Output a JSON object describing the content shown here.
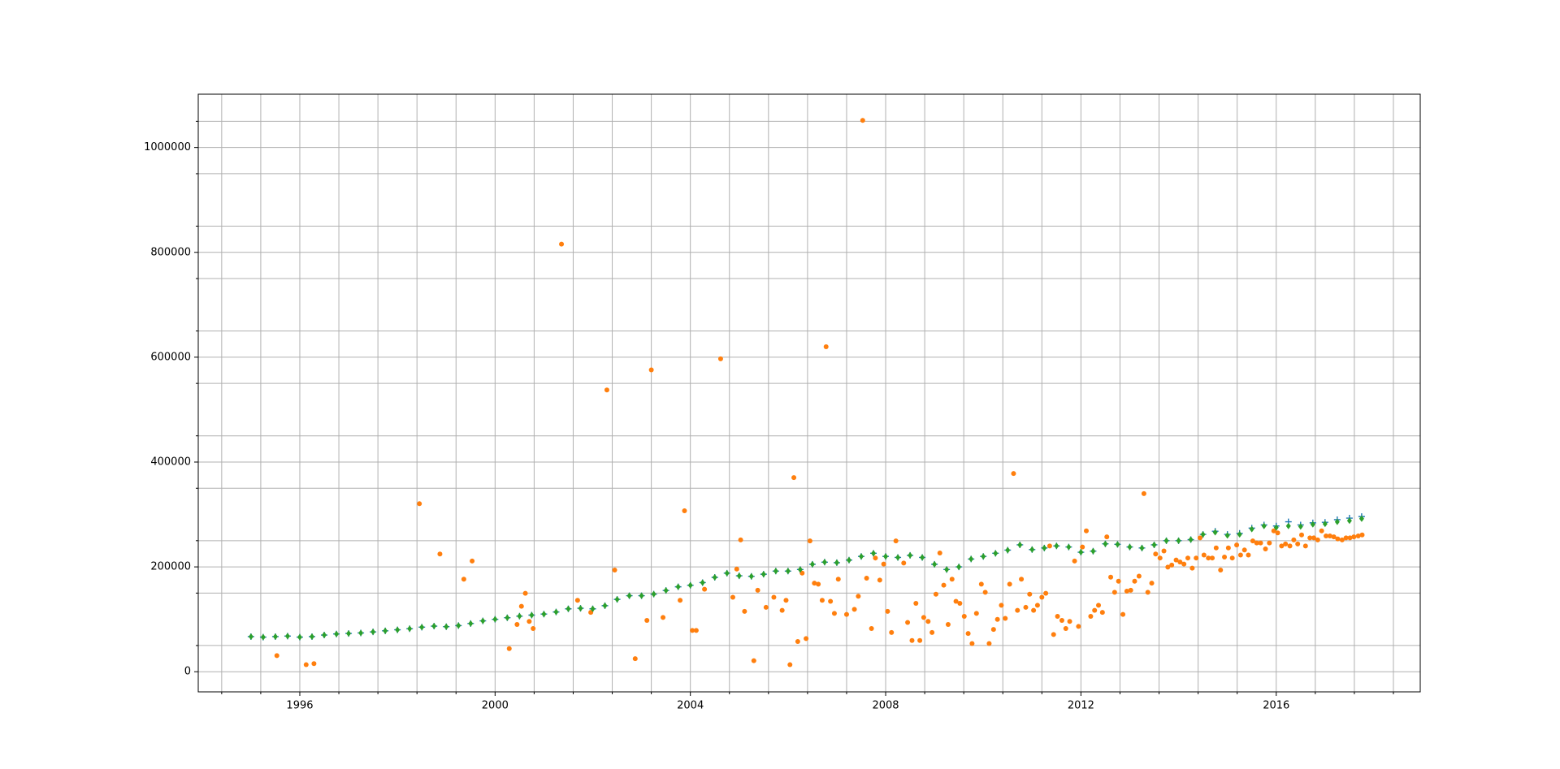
{
  "chart_data": {
    "type": "scatter",
    "xlim": [
      1993.92,
      2018.95
    ],
    "ylim": [
      -38400,
      1101700
    ],
    "xticks": [
      1996,
      2000,
      2004,
      2008,
      2012,
      2016
    ],
    "yticks": [
      0,
      200000,
      400000,
      600000,
      800000,
      1000000
    ],
    "xminorticks": [
      1994.4,
      1995.2,
      1996.8,
      1997.6,
      1998.4,
      1999.2,
      2000.8,
      2001.6,
      2002.4,
      2003.2,
      2004.8,
      2005.6,
      2006.4,
      2007.2,
      2008.8,
      2009.6,
      2010.4,
      2011.2,
      2012.8,
      2013.6,
      2014.4,
      2015.2,
      2016.8,
      2017.6,
      2018.4
    ],
    "yminorticks": [
      50000,
      150000,
      250000,
      350000,
      450000,
      550000,
      650000,
      750000,
      850000,
      950000,
      1050000
    ],
    "grid": true,
    "series": [
      {
        "color": "#1f77b4",
        "marker": "plus",
        "x": [
          1995,
          1995.25,
          1995.5,
          1995.75,
          1996,
          1996.25,
          1996.5,
          1996.75,
          1997,
          1997.25,
          1997.5,
          1997.75,
          1998,
          1998.25,
          1998.5,
          1998.75,
          1999,
          1999.25,
          1999.5,
          1999.75,
          2000,
          2000.25,
          2000.5,
          2000.75,
          2001,
          2001.25,
          2001.5,
          2001.75,
          2002,
          2002.25,
          2002.5,
          2002.75,
          2003,
          2003.25,
          2003.5,
          2003.75,
          2004,
          2004.25,
          2004.5,
          2004.75,
          2005,
          2005.25,
          2005.5,
          2005.75,
          2006,
          2006.25,
          2006.5,
          2006.75,
          2007,
          2007.25,
          2007.5,
          2007.75,
          2008,
          2008.25,
          2008.5,
          2008.75,
          2009,
          2009.25,
          2009.5,
          2009.75,
          2010,
          2010.25,
          2010.5,
          2010.75,
          2011,
          2011.25,
          2011.5,
          2011.75,
          2012,
          2012.25,
          2012.5,
          2012.75,
          2013,
          2013.25,
          2013.5,
          2013.75,
          2014,
          2014.25,
          2014.5,
          2014.75,
          2015,
          2015.25,
          2015.5,
          2015.75,
          2016,
          2016.25,
          2016.5,
          2016.75,
          2017,
          2017.25,
          2017.5,
          2017.75
        ],
        "values": [
          67000,
          66000,
          67000,
          68000,
          66000,
          67000,
          70000,
          72000,
          73000,
          74000,
          76000,
          78000,
          80000,
          82000,
          85000,
          87000,
          86000,
          88000,
          92000,
          97000,
          100000,
          103000,
          106000,
          108000,
          110000,
          114000,
          120000,
          121000,
          120000,
          126000,
          138000,
          145000,
          145000,
          148000,
          155000,
          162000,
          165000,
          170000,
          180000,
          188000,
          183000,
          182000,
          186000,
          192000,
          192000,
          195000,
          205000,
          209000,
          208000,
          213000,
          220000,
          226000,
          220000,
          218000,
          222000,
          218000,
          205000,
          195000,
          200000,
          215000,
          220000,
          226000,
          232000,
          242000,
          233000,
          236000,
          240000,
          238000,
          228000,
          230000,
          244000,
          243000,
          238000,
          236000,
          242000,
          250000,
          250000,
          252000,
          262000,
          268000,
          262000,
          264000,
          274000,
          280000,
          278000,
          286000,
          280000,
          284000,
          285000,
          290000,
          293000,
          296000
        ]
      },
      {
        "color": "#ff7f0e",
        "marker": "circle",
        "x": [
          1995.53,
          1996.13,
          1996.29,
          1998.45,
          1998.87,
          1999.36,
          1999.53,
          2000.29,
          2000.45,
          2000.54,
          2000.62,
          2000.7,
          2000.78,
          2001.36,
          2001.69,
          2001.96,
          2002.29,
          2002.45,
          2002.87,
          2003.11,
          2003.2,
          2003.44,
          2003.79,
          2003.88,
          2004.04,
          2004.12,
          2004.29,
          2004.62,
          2004.87,
          2004.95,
          2005.03,
          2005.11,
          2005.3,
          2005.38,
          2005.55,
          2005.71,
          2005.88,
          2005.96,
          2006.04,
          2006.12,
          2006.2,
          2006.29,
          2006.37,
          2006.45,
          2006.54,
          2006.62,
          2006.7,
          2006.78,
          2006.87,
          2006.95,
          2007.03,
          2007.2,
          2007.36,
          2007.44,
          2007.53,
          2007.61,
          2007.71,
          2007.79,
          2007.88,
          2007.96,
          2008.04,
          2008.12,
          2008.21,
          2008.37,
          2008.45,
          2008.54,
          2008.62,
          2008.7,
          2008.78,
          2008.87,
          2008.95,
          2009.03,
          2009.11,
          2009.19,
          2009.28,
          2009.36,
          2009.44,
          2009.52,
          2009.61,
          2009.69,
          2009.77,
          2009.86,
          2009.96,
          2010.04,
          2010.12,
          2010.21,
          2010.29,
          2010.37,
          2010.45,
          2010.54,
          2010.62,
          2010.7,
          2010.78,
          2010.87,
          2010.95,
          2011.03,
          2011.11,
          2011.2,
          2011.28,
          2011.36,
          2011.44,
          2011.52,
          2011.61,
          2011.69,
          2011.77,
          2011.87,
          2011.95,
          2012.03,
          2012.11,
          2012.2,
          2012.28,
          2012.36,
          2012.44,
          2012.53,
          2012.61,
          2012.69,
          2012.77,
          2012.86,
          2012.94,
          2013.02,
          2013.1,
          2013.19,
          2013.29,
          2013.37,
          2013.45,
          2013.53,
          2013.62,
          2013.7,
          2013.78,
          2013.86,
          2013.95,
          2014.03,
          2014.11,
          2014.19,
          2014.28,
          2014.36,
          2014.44,
          2014.52,
          2014.61,
          2014.69,
          2014.77,
          2014.86,
          2014.94,
          2015.02,
          2015.1,
          2015.19,
          2015.27,
          2015.35,
          2015.43,
          2015.52,
          2015.6,
          2015.68,
          2015.78,
          2015.86,
          2015.95,
          2016.03,
          2016.11,
          2016.19,
          2016.28,
          2016.36,
          2016.44,
          2016.52,
          2016.6,
          2016.69,
          2016.77,
          2016.85,
          2016.93,
          2017.02,
          2017.1,
          2017.18,
          2017.26,
          2017.35,
          2017.43,
          2017.51,
          2017.59,
          2017.68,
          2017.76
        ],
        "values": [
          30700,
          13400,
          15400,
          320500,
          224600,
          176600,
          211100,
          44100,
          90200,
          124800,
          149700,
          96000,
          82500,
          815700,
          136300,
          113200,
          537400,
          193900,
          25000,
          97900,
          575800,
          103600,
          136300,
          307100,
          78700,
          78700,
          157400,
          596900,
          142000,
          195800,
          251400,
          115200,
          21100,
          155500,
          122800,
          142000,
          117100,
          136300,
          13400,
          370400,
          57600,
          188100,
          63300,
          249500,
          168900,
          167000,
          136300,
          620000,
          134400,
          111300,
          176600,
          109400,
          119000,
          144000,
          1051800,
          178500,
          82500,
          216900,
          174700,
          205400,
          115200,
          74900,
          249500,
          207300,
          94000,
          59500,
          130500,
          59500,
          103600,
          96000,
          74900,
          147800,
          226500,
          165100,
          90200,
          176600,
          134400,
          130500,
          105600,
          72900,
          53700,
          111300,
          167000,
          151600,
          53700,
          80600,
          99800,
          126700,
          101700,
          167000,
          378100,
          117100,
          176600,
          122800,
          147800,
          117100,
          126700,
          142000,
          149700,
          239900,
          71000,
          105600,
          97900,
          82500,
          96000,
          211100,
          86400,
          238000,
          268700,
          105600,
          117100,
          126700,
          113200,
          257200,
          180400,
          151600,
          172700,
          109400,
          153600,
          155500,
          172700,
          182300,
          339700,
          151600,
          168900,
          224600,
          216900,
          230300,
          199600,
          203500,
          213100,
          209200,
          205400,
          216900,
          197700,
          216900,
          255300,
          222700,
          216900,
          216900,
          236100,
          193900,
          218800,
          236100,
          216900,
          241800,
          222700,
          232200,
          222700,
          249500,
          245700,
          245700,
          234200,
          245700,
          268700,
          264900,
          239900,
          243800,
          239900,
          251400,
          243800,
          261000,
          239900,
          255300,
          255300,
          251400,
          268700,
          259100,
          259100,
          257200,
          253400,
          251400,
          255300,
          255300,
          257200,
          259100,
          261000
        ]
      },
      {
        "color": "#2ca02c",
        "marker": "diamond",
        "x": [
          1995,
          1995.25,
          1995.5,
          1995.75,
          1996,
          1996.25,
          1996.5,
          1996.75,
          1997,
          1997.25,
          1997.5,
          1997.75,
          1998,
          1998.25,
          1998.5,
          1998.75,
          1999,
          1999.25,
          1999.5,
          1999.75,
          2000,
          2000.25,
          2000.5,
          2000.75,
          2001,
          2001.25,
          2001.5,
          2001.75,
          2002,
          2002.25,
          2002.5,
          2002.75,
          2003,
          2003.25,
          2003.5,
          2003.75,
          2004,
          2004.25,
          2004.5,
          2004.75,
          2005,
          2005.25,
          2005.5,
          2005.75,
          2006,
          2006.25,
          2006.5,
          2006.75,
          2007,
          2007.25,
          2007.5,
          2007.75,
          2008,
          2008.25,
          2008.5,
          2008.75,
          2009,
          2009.25,
          2009.5,
          2009.75,
          2010,
          2010.25,
          2010.5,
          2010.75,
          2011,
          2011.25,
          2011.5,
          2011.75,
          2012,
          2012.25,
          2012.5,
          2012.75,
          2013,
          2013.25,
          2013.5,
          2013.75,
          2014,
          2014.25,
          2014.5,
          2014.75,
          2015,
          2015.25,
          2015.5,
          2015.75,
          2016,
          2016.25,
          2016.5,
          2016.75,
          2017,
          2017.25,
          2017.5,
          2017.75
        ],
        "values": [
          67000,
          66000,
          67000,
          68000,
          66000,
          67000,
          70000,
          72000,
          73000,
          74000,
          76000,
          78000,
          80000,
          82000,
          85000,
          87000,
          86000,
          88000,
          92000,
          97000,
          100000,
          103000,
          106000,
          108000,
          110000,
          114000,
          120000,
          121000,
          120000,
          126000,
          138000,
          145000,
          145000,
          148000,
          155000,
          162000,
          165000,
          170000,
          180000,
          188000,
          183000,
          182000,
          186000,
          192000,
          192000,
          195000,
          205000,
          209000,
          208000,
          213000,
          220000,
          226000,
          220000,
          218000,
          222000,
          218000,
          205000,
          195000,
          200000,
          215000,
          220000,
          226000,
          232000,
          242000,
          233000,
          236000,
          240000,
          238000,
          228000,
          230000,
          244000,
          243000,
          238000,
          236000,
          242000,
          250000,
          250000,
          252000,
          262000,
          266000,
          260000,
          262000,
          272000,
          278000,
          275000,
          278000,
          277000,
          281000,
          282000,
          286000,
          288000,
          292000
        ]
      }
    ]
  }
}
